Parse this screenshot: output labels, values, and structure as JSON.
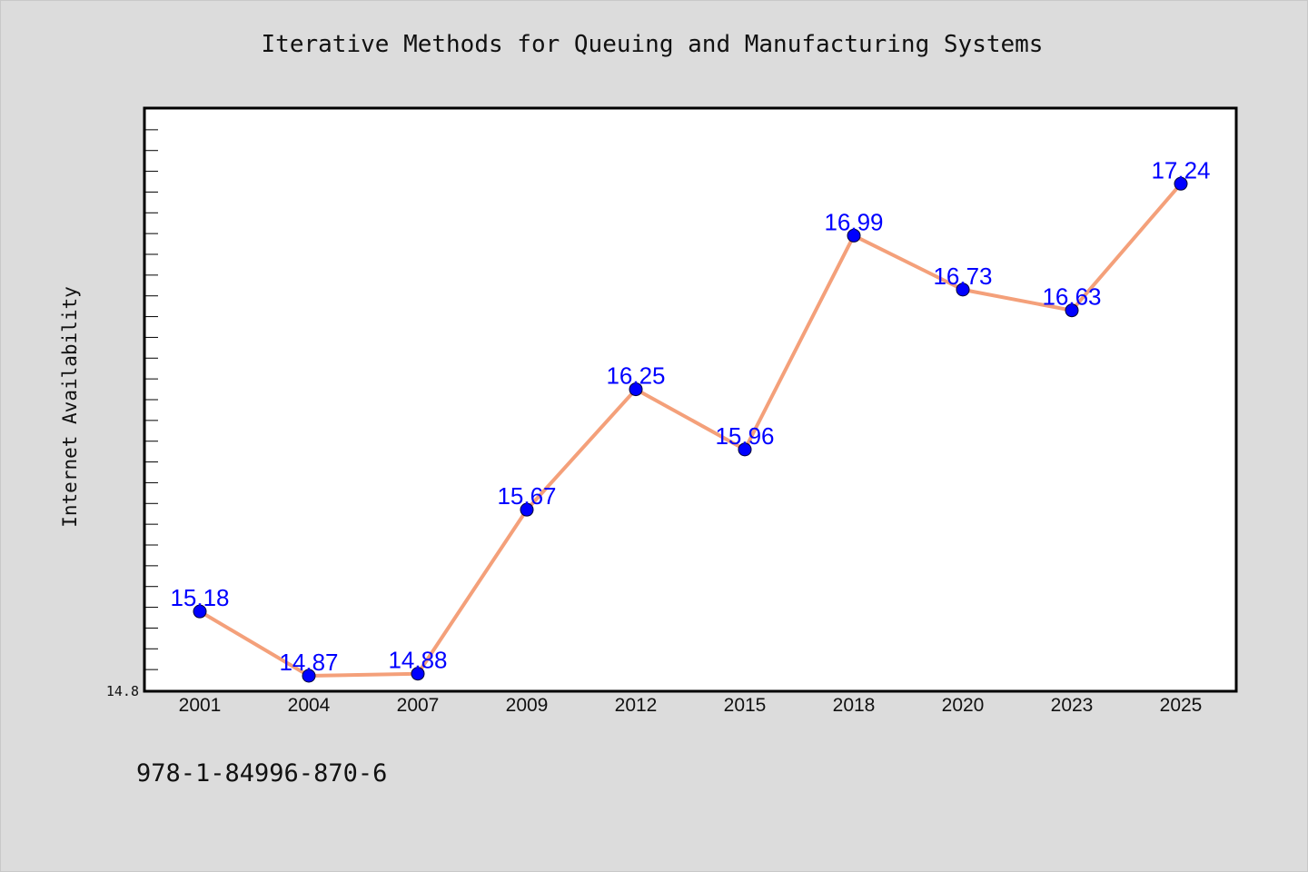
{
  "chart_data": {
    "type": "line",
    "title": "Iterative Methods for Queuing and Manufacturing Systems",
    "xlabel": "",
    "ylabel": "Internet Availability",
    "categories": [
      "2001",
      "2004",
      "2007",
      "2009",
      "2012",
      "2015",
      "2018",
      "2020",
      "2023",
      "2025"
    ],
    "series": [
      {
        "values": [
          15.18,
          14.87,
          14.88,
          15.67,
          16.25,
          15.96,
          16.99,
          16.73,
          16.63,
          17.24
        ]
      }
    ],
    "data_labels": [
      "15.18",
      "14.87",
      "14.88",
      "15.67",
      "16.25",
      "15.96",
      "16.99",
      "16.73",
      "16.63",
      "17.24"
    ],
    "ylim": [
      14.8,
      17.6
    ],
    "y_min_label": "14.8",
    "grid": false,
    "line_color": "#f4a07a",
    "marker_color": "#0000ff",
    "label_color": "#0000ff",
    "plot_background": "#ffffff",
    "page_background": "#dcdcdc"
  },
  "footer": {
    "isbn": "978-1-84996-870-6"
  }
}
